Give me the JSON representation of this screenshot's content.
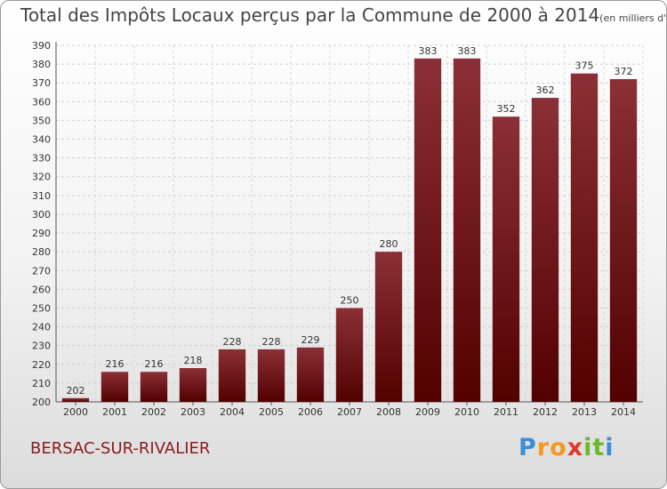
{
  "chart_data": {
    "type": "bar",
    "title": "Total des Impôts Locaux perçus par la Commune de 2000 à 2014",
    "unit_label": "(en milliers d'€)",
    "categories": [
      "2000",
      "2001",
      "2002",
      "2003",
      "2004",
      "2005",
      "2006",
      "2007",
      "2008",
      "2009",
      "2010",
      "2011",
      "2012",
      "2013",
      "2014"
    ],
    "values": [
      202,
      216,
      216,
      218,
      228,
      228,
      229,
      250,
      280,
      383,
      383,
      352,
      362,
      375,
      372
    ],
    "ylim": [
      200,
      390
    ],
    "ytick_step": 10,
    "grid": true,
    "bar_color_top": "#8b3036",
    "bar_color_bottom": "#520000",
    "xlabel": "",
    "ylabel": ""
  },
  "commune": "BERSAC-SUR-RIVALIER",
  "logo": {
    "text": "Proxiti",
    "letters": [
      "P",
      "r",
      "o",
      "x",
      "i",
      "t",
      "i"
    ],
    "colors": [
      "#3a8fd6",
      "#f29a1f",
      "#f29a1f",
      "#e0392b",
      "#6bb82a",
      "#6bb82a",
      "#3a8fd6"
    ]
  }
}
